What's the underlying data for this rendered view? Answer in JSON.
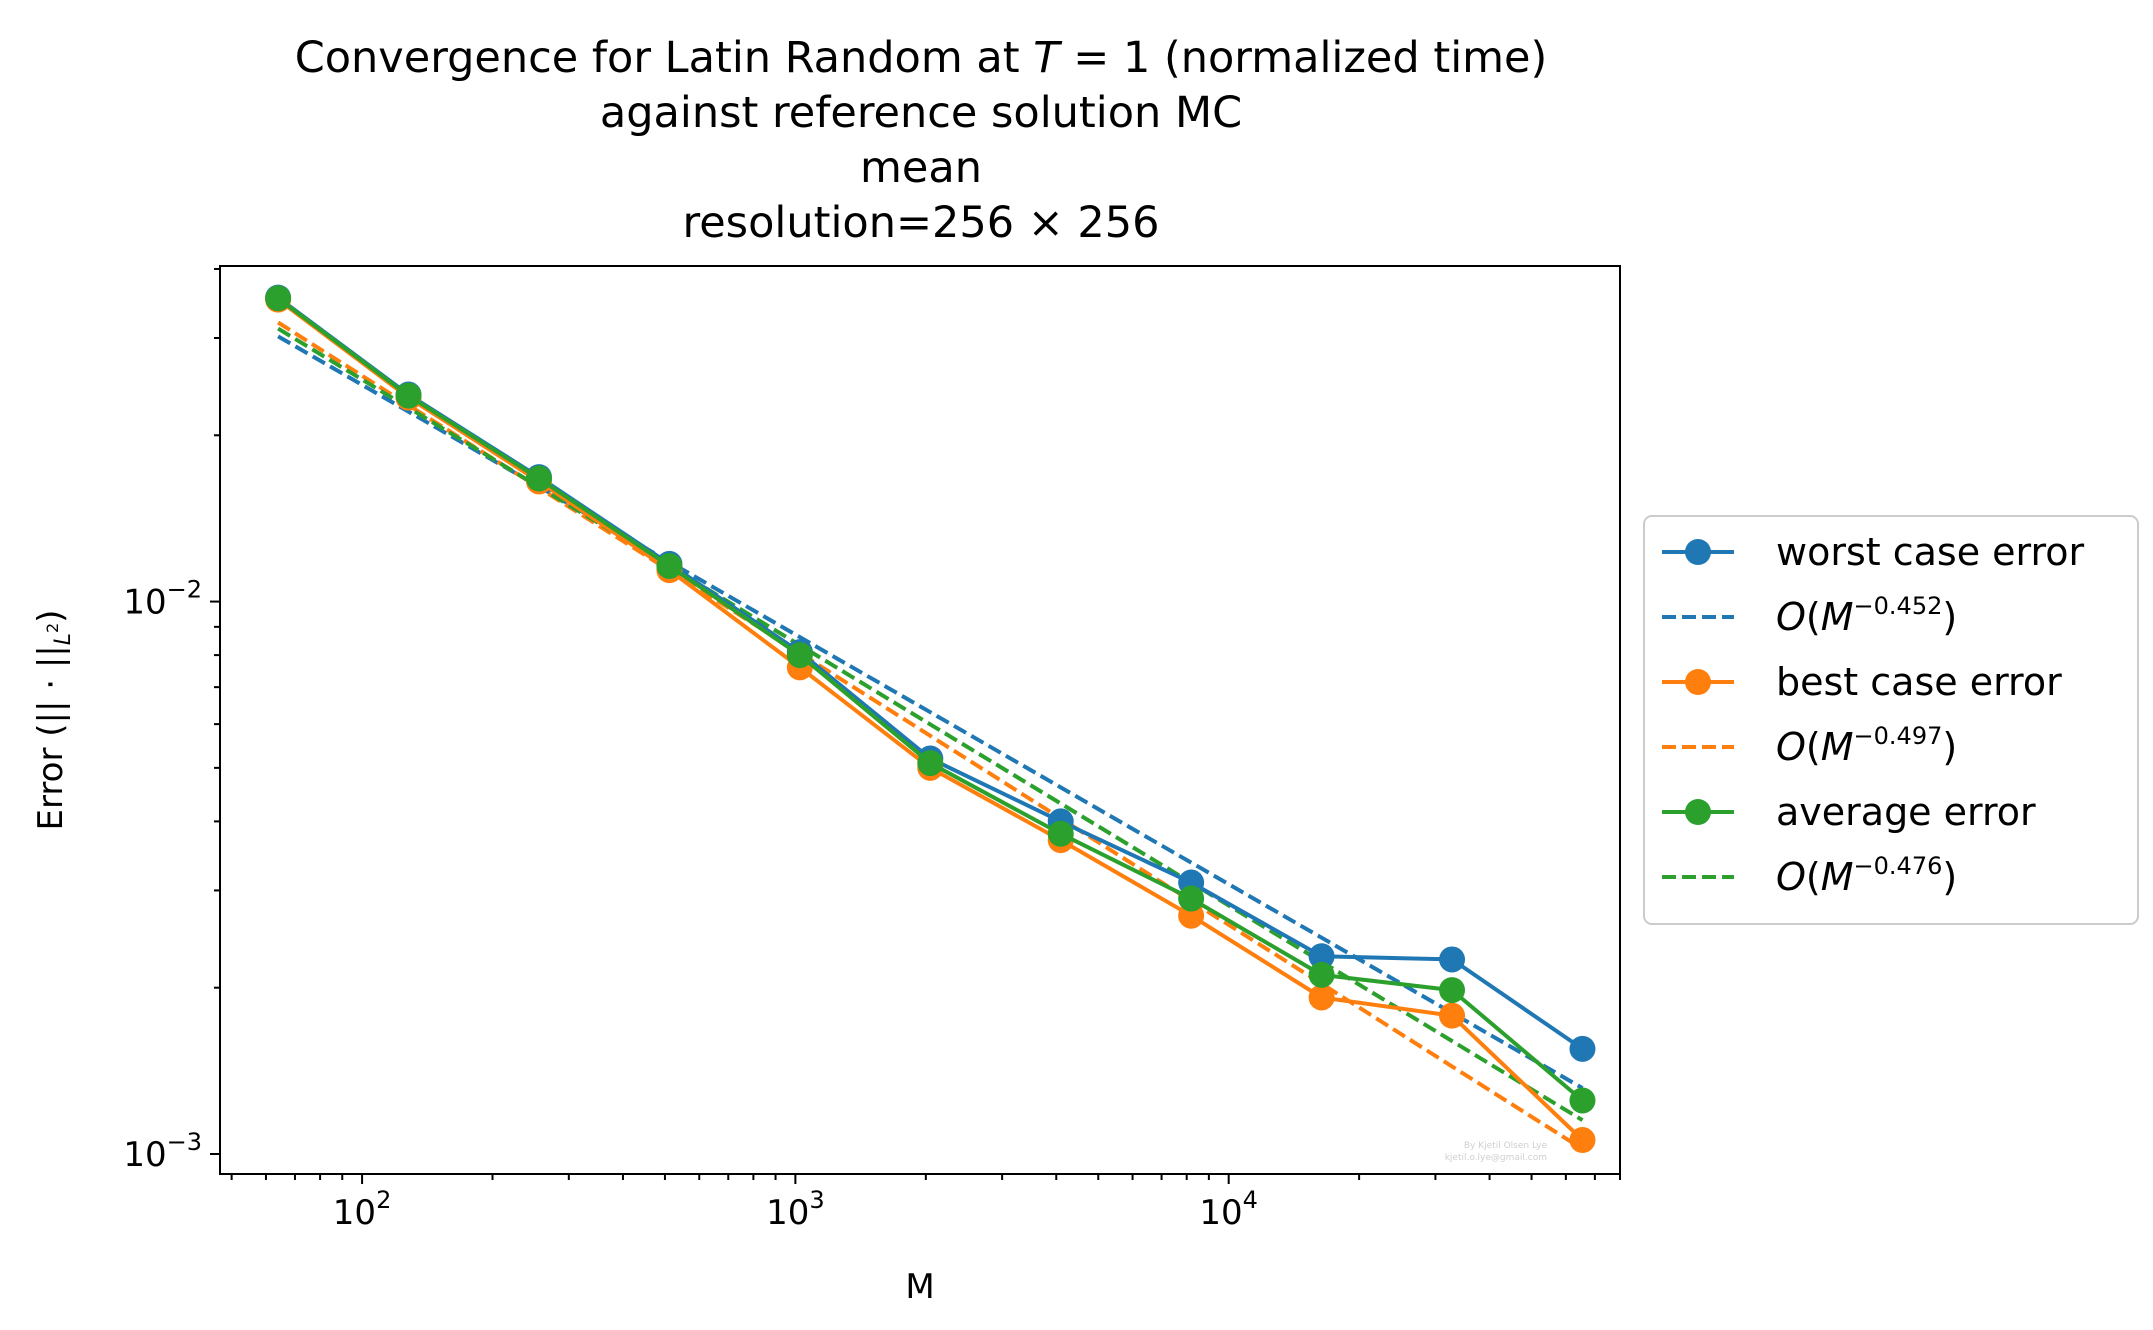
{
  "chart_data": {
    "type": "line",
    "title": [
      "Convergence for Latin Random at T = 1 (normalized time)",
      "against reference solution MC",
      "mean",
      "resolution=256 × 256"
    ],
    "xlabel": "M",
    "ylabel": "Error (|| · ||L²)",
    "xscale": "log",
    "yscale": "log",
    "xlim": [
      47,
      80000
    ],
    "ylim": [
      0.00092,
      0.0405
    ],
    "x_ticks": [
      {
        "base": "10",
        "exp": "2",
        "value": 100
      },
      {
        "base": "10",
        "exp": "3",
        "value": 1000
      },
      {
        "base": "10",
        "exp": "4",
        "value": 10000
      }
    ],
    "y_ticks": [
      {
        "base": "10",
        "exp": "−2",
        "value": 0.01
      },
      {
        "base": "10",
        "exp": "−3",
        "value": 0.001
      }
    ],
    "grid": false,
    "legend_position": "outside-right",
    "x": [
      64,
      128,
      256,
      512,
      1024,
      2048,
      4096,
      8192,
      16384,
      32768,
      65536
    ],
    "series": [
      {
        "name": "worst case error",
        "style": "solid-marker",
        "color": "#1f77b4",
        "values": [
          0.0355,
          0.0237,
          0.0168,
          0.0117,
          0.0081,
          0.0052,
          0.004,
          0.0031,
          0.00228,
          0.00225,
          0.00155
        ]
      },
      {
        "name": "O(M^-0.452)",
        "label_base": "O(M",
        "label_exp": "−0.452",
        "label_tail": ")",
        "style": "dashed",
        "color": "#1f77b4",
        "exponent": -0.452,
        "fit_start": 0.0302
      },
      {
        "name": "best case error",
        "style": "solid-marker",
        "color": "#ff7f0e",
        "values": [
          0.0352,
          0.0234,
          0.0165,
          0.0114,
          0.0076,
          0.005,
          0.0037,
          0.0027,
          0.00192,
          0.00178,
          0.00106
        ]
      },
      {
        "name": "O(M^-0.497)",
        "label_base": "O(M",
        "label_exp": "−0.497",
        "label_tail": ")",
        "style": "dashed",
        "color": "#ff7f0e",
        "exponent": -0.497,
        "fit_start": 0.032
      },
      {
        "name": "average error",
        "style": "solid-marker",
        "color": "#2ca02c",
        "values": [
          0.0354,
          0.0236,
          0.0167,
          0.0116,
          0.008,
          0.0051,
          0.0038,
          0.0029,
          0.00211,
          0.00198,
          0.00125
        ]
      },
      {
        "name": "O(M^-0.476)",
        "label_base": "O(M",
        "label_exp": "−0.476",
        "label_tail": ")",
        "style": "dashed",
        "color": "#2ca02c",
        "exponent": -0.476,
        "fit_start": 0.0312
      }
    ],
    "watermark": [
      "By Kjetil Olsen Lye",
      "kjetil.o.lye@gmail.com"
    ]
  }
}
